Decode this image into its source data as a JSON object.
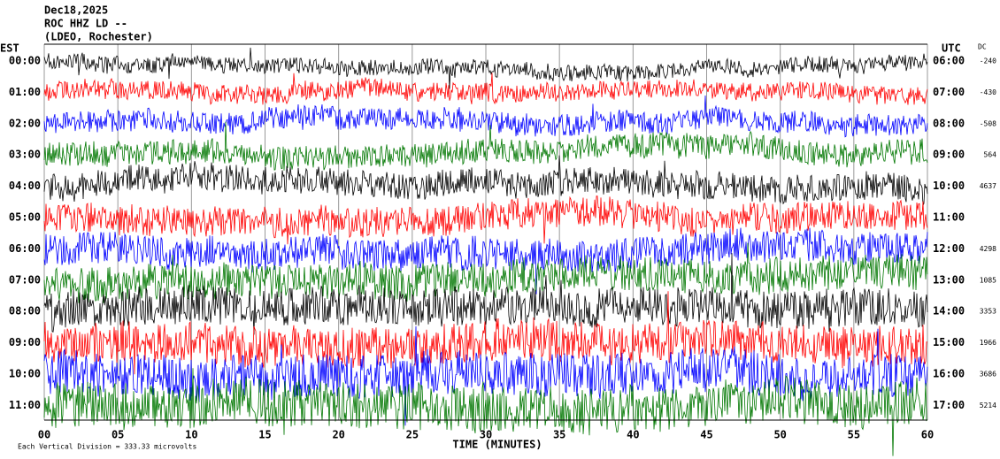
{
  "header": {
    "lines": [
      "Dec18,2025",
      "ROC HHZ LD --",
      "(LDEO, Rochester)"
    ]
  },
  "left_title": "EST",
  "right_title": "UTC",
  "dc_title": "DC",
  "rows": [
    {
      "est": "00:00",
      "utc": "06:00",
      "dc": "-240"
    },
    {
      "est": "01:00",
      "utc": "07:00",
      "dc": "-430"
    },
    {
      "est": "02:00",
      "utc": "08:00",
      "dc": "-508"
    },
    {
      "est": "03:00",
      "utc": "09:00",
      "dc": "564"
    },
    {
      "est": "04:00",
      "utc": "10:00",
      "dc": "4637"
    },
    {
      "est": "05:00",
      "utc": "11:00"
    },
    {
      "est": "06:00",
      "utc": "12:00",
      "dc": "4298"
    },
    {
      "est": "07:00",
      "utc": "13:00",
      "dc": "1085"
    },
    {
      "est": "08:00",
      "utc": "14:00",
      "dc": "3353"
    },
    {
      "est": "09:00",
      "utc": "15:00",
      "dc": "1966"
    },
    {
      "est": "10:00",
      "utc": "16:00",
      "dc": "3686"
    },
    {
      "est": "11:00",
      "utc": "17:00",
      "dc": "5214"
    }
  ],
  "x_ticks": [
    "00",
    "05",
    "10",
    "15",
    "20",
    "25",
    "30",
    "35",
    "40",
    "45",
    "50",
    "55",
    "60"
  ],
  "x_label": "TIME (MINUTES)",
  "footer": "Each Vertical Division =  333.33 microvolts"
}
